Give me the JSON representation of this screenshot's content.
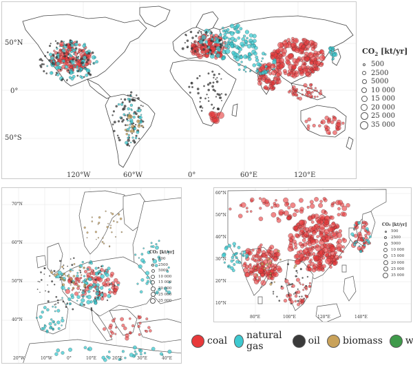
{
  "world": {
    "lat_labels": [
      "50°N",
      "0°",
      "50°S"
    ],
    "lon_labels": [
      "120°W",
      "60°W",
      "0°",
      "60°E",
      "120°E"
    ],
    "legend": {
      "title_main": "CO",
      "title_sub": "2",
      "title_rest": " [kt/yr]",
      "values": [
        "500",
        "2500",
        "5000",
        "10 000",
        "15 000",
        "20 000",
        "25 000",
        "35 000"
      ]
    }
  },
  "europe": {
    "lat_labels": [
      "70°N",
      "60°N",
      "50°N",
      "40°N"
    ],
    "lon_labels": [
      "20°W",
      "10°W",
      "0°",
      "10°E",
      "20°E",
      "30°E",
      "40°E"
    ],
    "legend": {
      "title": "CO₂ [kt/yr]",
      "values": [
        "500",
        "2500",
        "5000",
        "10 000",
        "15 000",
        "20 000",
        "25 000",
        "35 000"
      ]
    }
  },
  "asia": {
    "lat_labels": [
      "60°N",
      "50°N",
      "40°N",
      "30°N",
      "20°N",
      "10°N"
    ],
    "lon_labels": [
      "80°E",
      "100°E",
      "120°E",
      "140°E"
    ],
    "legend": {
      "title": "CO₂ [kt/yr]",
      "values": [
        "500",
        "2500",
        "5000",
        "10 000",
        "15 000",
        "20 000",
        "25 000",
        "35 000"
      ]
    }
  },
  "fuels": [
    {
      "label": "coal",
      "color": "#e8393a"
    },
    {
      "label": "natural gas",
      "color": "#3ec9d0"
    },
    {
      "label": "oil",
      "color": "#3a3a3a"
    },
    {
      "label": "biomass",
      "color": "#c9a25a"
    },
    {
      "label": "waste",
      "color": "#3f9a4a"
    }
  ],
  "colors": {
    "land": "#ffffff",
    "coastline": "#444444",
    "grid": "#e6e6e6",
    "coal": "#e8393a",
    "natural_gas": "#3ec9d0",
    "oil": "#3a3a3a",
    "biomass": "#c9a25a",
    "waste": "#3f9a4a"
  }
}
